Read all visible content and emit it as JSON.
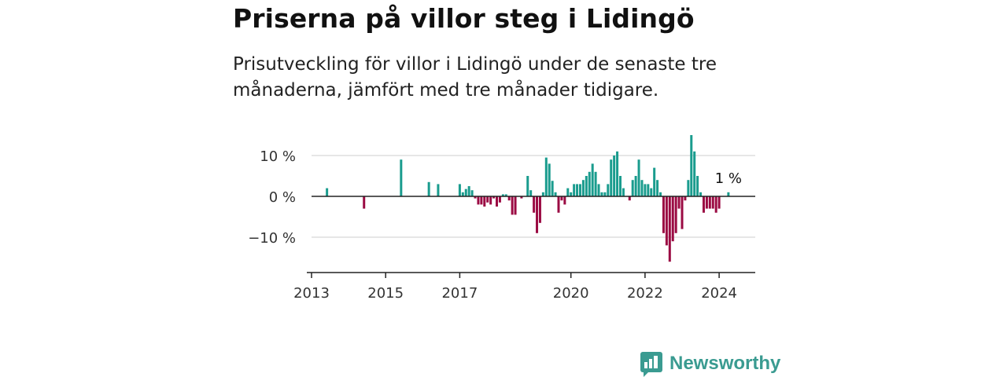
{
  "header": {
    "title": "Priserna på villor steg i Lidingö",
    "subtitle": "Prisutveckling för villor i Lidingö under de senaste tre månaderna, jämfört med tre månader tidigare."
  },
  "brand": {
    "name": "Newsworthy",
    "icon": "newsworthy-logo-icon",
    "color": "#3a9b91"
  },
  "colors": {
    "positive": "#1a9c8e",
    "negative": "#9b0b43",
    "grid": "#dddddd",
    "axis": "#222222"
  },
  "chart_data": {
    "type": "bar",
    "x_unit": "month",
    "ylim": [
      -18,
      18
    ],
    "xlim": [
      "2013-01",
      "2024-12"
    ],
    "y_ticks": [
      {
        "value": 10,
        "label": "10 %"
      },
      {
        "value": 0,
        "label": "0 %"
      },
      {
        "value": -10,
        "label": "−10 %"
      }
    ],
    "x_ticks": [
      {
        "date": "2013-01",
        "label": "2013"
      },
      {
        "date": "2015-01",
        "label": "2015"
      },
      {
        "date": "2017-01",
        "label": "2017"
      },
      {
        "date": "2020-01",
        "label": "2020"
      },
      {
        "date": "2022-01",
        "label": "2022"
      },
      {
        "date": "2024-01",
        "label": "2024"
      }
    ],
    "grid": true,
    "legend": "none",
    "annotation": {
      "date": "2024-04",
      "label": "1 %"
    },
    "points": [
      {
        "date": "2013-06",
        "value": 2
      },
      {
        "date": "2014-06",
        "value": -3
      },
      {
        "date": "2015-06",
        "value": 9
      },
      {
        "date": "2016-03",
        "value": 3.5
      },
      {
        "date": "2016-06",
        "value": 3
      },
      {
        "date": "2017-01",
        "value": 3
      },
      {
        "date": "2017-02",
        "value": 1
      },
      {
        "date": "2017-03",
        "value": 1.8
      },
      {
        "date": "2017-04",
        "value": 2.5
      },
      {
        "date": "2017-05",
        "value": 1.5
      },
      {
        "date": "2017-06",
        "value": -0.5
      },
      {
        "date": "2017-07",
        "value": -2
      },
      {
        "date": "2017-08",
        "value": -2
      },
      {
        "date": "2017-09",
        "value": -2.5
      },
      {
        "date": "2017-10",
        "value": -1.5
      },
      {
        "date": "2017-11",
        "value": -2
      },
      {
        "date": "2017-12",
        "value": -0.5
      },
      {
        "date": "2018-01",
        "value": -2.5
      },
      {
        "date": "2018-02",
        "value": -1.5
      },
      {
        "date": "2018-03",
        "value": 0.5
      },
      {
        "date": "2018-04",
        "value": 0.5
      },
      {
        "date": "2018-05",
        "value": -1
      },
      {
        "date": "2018-06",
        "value": -4.5
      },
      {
        "date": "2018-07",
        "value": -4.5
      },
      {
        "date": "2018-09",
        "value": -0.5
      },
      {
        "date": "2018-11",
        "value": 5
      },
      {
        "date": "2018-12",
        "value": 1.5
      },
      {
        "date": "2019-01",
        "value": -4
      },
      {
        "date": "2019-02",
        "value": -9
      },
      {
        "date": "2019-03",
        "value": -6.5
      },
      {
        "date": "2019-04",
        "value": 1
      },
      {
        "date": "2019-05",
        "value": 9.5
      },
      {
        "date": "2019-06",
        "value": 8
      },
      {
        "date": "2019-07",
        "value": 3.8
      },
      {
        "date": "2019-08",
        "value": 1
      },
      {
        "date": "2019-09",
        "value": -4
      },
      {
        "date": "2019-10",
        "value": -1
      },
      {
        "date": "2019-11",
        "value": -2
      },
      {
        "date": "2019-12",
        "value": 2
      },
      {
        "date": "2020-01",
        "value": 1
      },
      {
        "date": "2020-02",
        "value": 3
      },
      {
        "date": "2020-03",
        "value": 3
      },
      {
        "date": "2020-04",
        "value": 3
      },
      {
        "date": "2020-05",
        "value": 4
      },
      {
        "date": "2020-06",
        "value": 5
      },
      {
        "date": "2020-07",
        "value": 6
      },
      {
        "date": "2020-08",
        "value": 8
      },
      {
        "date": "2020-09",
        "value": 6
      },
      {
        "date": "2020-10",
        "value": 3
      },
      {
        "date": "2020-11",
        "value": 1
      },
      {
        "date": "2020-12",
        "value": 1
      },
      {
        "date": "2021-01",
        "value": 3
      },
      {
        "date": "2021-02",
        "value": 9
      },
      {
        "date": "2021-03",
        "value": 10
      },
      {
        "date": "2021-04",
        "value": 11
      },
      {
        "date": "2021-05",
        "value": 5
      },
      {
        "date": "2021-06",
        "value": 2
      },
      {
        "date": "2021-08",
        "value": -1
      },
      {
        "date": "2021-09",
        "value": 4
      },
      {
        "date": "2021-10",
        "value": 5
      },
      {
        "date": "2021-11",
        "value": 9
      },
      {
        "date": "2021-12",
        "value": 4
      },
      {
        "date": "2022-01",
        "value": 3
      },
      {
        "date": "2022-02",
        "value": 3
      },
      {
        "date": "2022-03",
        "value": 2
      },
      {
        "date": "2022-04",
        "value": 7
      },
      {
        "date": "2022-05",
        "value": 4
      },
      {
        "date": "2022-06",
        "value": 1
      },
      {
        "date": "2022-07",
        "value": -9
      },
      {
        "date": "2022-08",
        "value": -12
      },
      {
        "date": "2022-09",
        "value": -16
      },
      {
        "date": "2022-10",
        "value": -11
      },
      {
        "date": "2022-11",
        "value": -9
      },
      {
        "date": "2022-12",
        "value": -3
      },
      {
        "date": "2023-01",
        "value": -8
      },
      {
        "date": "2023-02",
        "value": -1
      },
      {
        "date": "2023-03",
        "value": 4
      },
      {
        "date": "2023-04",
        "value": 15
      },
      {
        "date": "2023-05",
        "value": 11
      },
      {
        "date": "2023-06",
        "value": 5
      },
      {
        "date": "2023-07",
        "value": 1
      },
      {
        "date": "2023-08",
        "value": -4
      },
      {
        "date": "2023-09",
        "value": -3
      },
      {
        "date": "2023-10",
        "value": -3
      },
      {
        "date": "2023-11",
        "value": -3
      },
      {
        "date": "2023-12",
        "value": -4
      },
      {
        "date": "2024-01",
        "value": -3
      },
      {
        "date": "2024-04",
        "value": 1
      }
    ]
  }
}
